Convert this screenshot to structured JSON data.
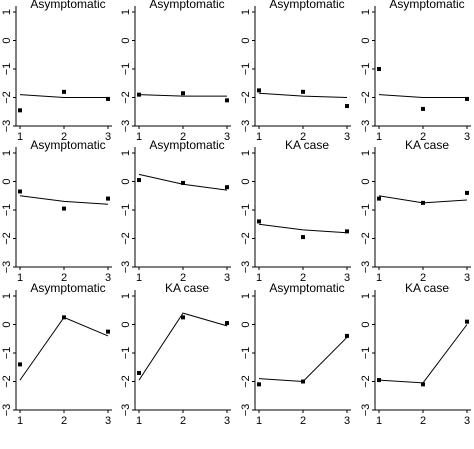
{
  "chart_data": [
    {
      "type": "line",
      "title": "Asymptomatic",
      "x": [
        1,
        2,
        3
      ],
      "line": [
        -1.9,
        -2.0,
        -2.0
      ],
      "points": [
        -2.45,
        -1.8,
        -2.05
      ],
      "xticks": [
        "1",
        "2",
        "3"
      ],
      "yticks": [
        "1",
        "0",
        "−1",
        "−2",
        "−3"
      ],
      "ylim": [
        -3,
        1
      ]
    },
    {
      "type": "line",
      "title": "Asymptomatic",
      "x": [
        1,
        2,
        3
      ],
      "line": [
        -1.9,
        -1.95,
        -1.95
      ],
      "points": [
        -1.9,
        -1.85,
        -2.1
      ],
      "xticks": [
        "1",
        "2",
        "3"
      ],
      "yticks": [
        "1",
        "0",
        "−1",
        "−2",
        "−3"
      ],
      "ylim": [
        -3,
        1
      ]
    },
    {
      "type": "line",
      "title": "Asymptomatic",
      "x": [
        1,
        2,
        3
      ],
      "line": [
        -1.85,
        -1.95,
        -2.0
      ],
      "points": [
        -1.75,
        -1.8,
        -2.3
      ],
      "xticks": [
        "1",
        "2",
        "3"
      ],
      "yticks": [
        "1",
        "0",
        "−1",
        "−2",
        "−3"
      ],
      "ylim": [
        -3,
        1
      ]
    },
    {
      "type": "line",
      "title": "Asymptomatic",
      "x": [
        1,
        2,
        3
      ],
      "line": [
        -1.9,
        -2.0,
        -2.0
      ],
      "points": [
        -1.0,
        -2.4,
        -2.05
      ],
      "xticks": [
        "1",
        "2",
        "3"
      ],
      "yticks": [
        "1",
        "0",
        "−1",
        "−2",
        "−3"
      ],
      "ylim": [
        -3,
        1
      ]
    },
    {
      "type": "line",
      "title": "Asymptomatic",
      "x": [
        1,
        2,
        3
      ],
      "line": [
        -0.5,
        -0.7,
        -0.8
      ],
      "points": [
        -0.35,
        -0.95,
        -0.6
      ],
      "xticks": [
        "1",
        "2",
        "3"
      ],
      "yticks": [
        "1",
        "0",
        "−1",
        "−2",
        "−3"
      ],
      "ylim": [
        -3,
        1
      ]
    },
    {
      "type": "line",
      "title": "Asymptomatic",
      "x": [
        1,
        2,
        3
      ],
      "line": [
        0.25,
        -0.1,
        -0.3
      ],
      "points": [
        0.05,
        -0.05,
        -0.2
      ],
      "xticks": [
        "1",
        "2",
        "3"
      ],
      "yticks": [
        "1",
        "0",
        "−1",
        "−2",
        "−3"
      ],
      "ylim": [
        -3,
        1
      ]
    },
    {
      "type": "line",
      "title": "KA case",
      "x": [
        1,
        2,
        3
      ],
      "line": [
        -1.5,
        -1.7,
        -1.8
      ],
      "points": [
        -1.4,
        -1.95,
        -1.75
      ],
      "xticks": [
        "1",
        "2",
        "3"
      ],
      "yticks": [
        "1",
        "0",
        "−1",
        "−2",
        "−3"
      ],
      "ylim": [
        -3,
        1
      ]
    },
    {
      "type": "line",
      "title": "KA case",
      "x": [
        1,
        2,
        3
      ],
      "line": [
        -0.5,
        -0.75,
        -0.65
      ],
      "points": [
        -0.6,
        -0.75,
        -0.4
      ],
      "xticks": [
        "1",
        "2",
        "3"
      ],
      "yticks": [
        "1",
        "0",
        "−1",
        "−2",
        "−3"
      ],
      "ylim": [
        -3,
        1
      ]
    },
    {
      "type": "line",
      "title": "Asymptomatic",
      "x": [
        1,
        2,
        3
      ],
      "line": [
        -1.95,
        0.25,
        -0.4
      ],
      "points": [
        -1.4,
        0.25,
        -0.25
      ],
      "xticks": [
        "1",
        "2",
        "3"
      ],
      "yticks": [
        "1",
        "0",
        "−1",
        "−2",
        "−3"
      ],
      "ylim": [
        -3,
        1
      ]
    },
    {
      "type": "line",
      "title": "KA case",
      "x": [
        1,
        2,
        3
      ],
      "line": [
        -1.95,
        0.4,
        -0.05
      ],
      "points": [
        -1.7,
        0.25,
        0.05
      ],
      "xticks": [
        "1",
        "2",
        "3"
      ],
      "yticks": [
        "1",
        "0",
        "−1",
        "−2",
        "−3"
      ],
      "ylim": [
        -3,
        1
      ]
    },
    {
      "type": "line",
      "title": "Asymptomatic",
      "x": [
        1,
        2,
        3
      ],
      "line": [
        -1.9,
        -2.0,
        -0.45
      ],
      "points": [
        -2.1,
        -2.0,
        -0.4
      ],
      "xticks": [
        "1",
        "2",
        "3"
      ],
      "yticks": [
        "1",
        "0",
        "−1",
        "−2",
        "−3"
      ],
      "ylim": [
        -3,
        1
      ]
    },
    {
      "type": "line",
      "title": "KA case",
      "x": [
        1,
        2,
        3
      ],
      "line": [
        -1.95,
        -2.05,
        0.0
      ],
      "points": [
        -1.95,
        -2.1,
        0.1
      ],
      "xticks": [
        "1",
        "2",
        "3"
      ],
      "yticks": [
        "1",
        "0",
        "−1",
        "−2",
        "−3"
      ],
      "ylim": [
        -3,
        1
      ]
    }
  ]
}
